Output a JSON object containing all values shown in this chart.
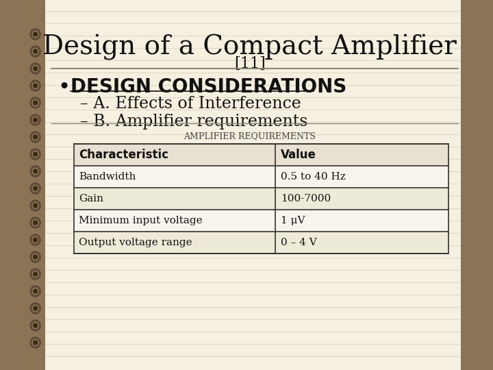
{
  "title": "Design of a Compact Amplifier",
  "subtitle": "[11]",
  "bullet": "DESIGN CONSIDERATIONS",
  "sub1": "– A. Effects of Interference",
  "sub2": "– B. Amplifier requirements",
  "table_title": "Amplifier Requirements",
  "table_headers": [
    "Characteristic",
    "Value"
  ],
  "table_rows": [
    [
      "Bandwidth",
      "0.5 to 40 Hz"
    ],
    [
      "Gain",
      "100-7000"
    ],
    [
      "Minimum input voltage",
      "1 μV"
    ],
    [
      "Output voltage range",
      "0 – 4 V"
    ]
  ],
  "bg_color": "#f5f0e0",
  "spiral_color": "#8B7355",
  "line_color": "#c8c0a0",
  "table_border_color": "#333333",
  "header_bg": "#e8e0d0",
  "title_color": "#111111",
  "text_color": "#111111",
  "table_caption_color": "#444444"
}
